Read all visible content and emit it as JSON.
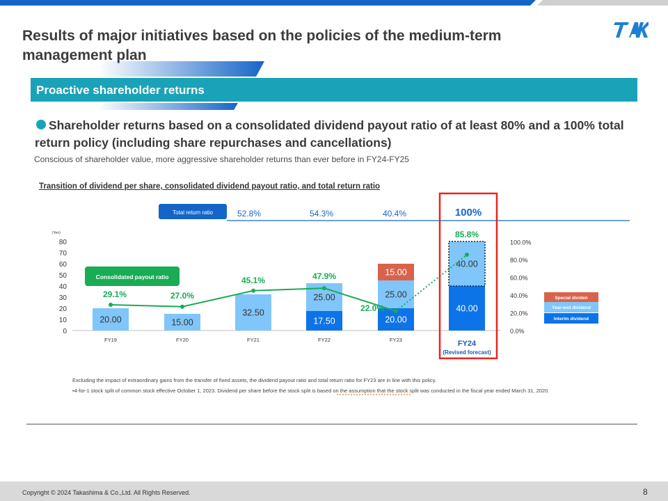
{
  "header": {
    "title": "Results of major initiatives based on the policies of the medium-term management plan",
    "section": "Proactive shareholder returns",
    "logo_icon": "tak-logo-icon"
  },
  "body": {
    "headline": "Shareholder returns based on a consolidated dividend payout ratio of at least 80% and a 100% total return policy (including share repurchases and cancellations)",
    "subline": "Conscious of shareholder value, more aggressive shareholder returns than ever before in FY24-FY25",
    "chart_title": "Transition of dividend per share, consolidated dividend payout ratio, and total return ratio"
  },
  "chart_data": {
    "type": "bar",
    "categories": [
      "FY19",
      "FY20",
      "FY21",
      "FY22",
      "FY23",
      "FY24"
    ],
    "category_note": "(Revised forecast)",
    "y_unit": "(Yen)",
    "ylim": [
      0,
      80
    ],
    "y_ticks": [
      "0",
      "10",
      "20",
      "30",
      "40",
      "50",
      "60",
      "70",
      "80"
    ],
    "y2_ticks": [
      "0.0%",
      "20.0%",
      "40.0%",
      "60.0%",
      "80.0%",
      "100.0%"
    ],
    "series": [
      {
        "name": "Interim dividend",
        "color": "#0d73e8",
        "values": [
          null,
          null,
          null,
          17.5,
          20.0,
          40.0
        ],
        "labels": [
          "",
          "",
          "",
          "17.50",
          "20.00",
          "40.00"
        ]
      },
      {
        "name": "Year-end dividend",
        "color": "#80c6fa",
        "values": [
          20.0,
          15.0,
          32.5,
          25.0,
          25.0,
          40.0
        ],
        "labels": [
          "20.00",
          "15.00",
          "32.50",
          "25.00",
          "25.00",
          "40.00"
        ]
      },
      {
        "name": "Special dividend",
        "color": "#d9634a",
        "values": [
          null,
          null,
          null,
          null,
          15.0,
          null
        ],
        "labels": [
          "",
          "",
          "",
          "",
          "15.00",
          ""
        ]
      }
    ],
    "payout_ratio": {
      "name": "Consolidated payout ratio",
      "color": "#1aab55",
      "values": [
        29.1,
        27.0,
        45.1,
        47.9,
        22.0,
        85.8
      ],
      "labels": [
        "29.1%",
        "27.0%",
        "45.1%",
        "47.9%",
        "22.0%",
        "85.8%"
      ]
    },
    "total_return": {
      "name": "Total return ratio",
      "labels": [
        "",
        "",
        "52.8%",
        "54.3%",
        "40.4%",
        "100%"
      ]
    },
    "legend_labels": [
      "Special dividen",
      "Year-end dividend",
      "Interim dividend"
    ]
  },
  "notes": [
    "Excluding the impact of extraordinary gains from the transfer of fixed assets, the dividend payout ratio and total return ratio for FY23 are in line with this policy.",
    "•4-for-1 stock split of common stock effective October 1, 2023. Dividend per share before the stock split is based on the assumption that the stock split was conducted in the fiscal year ended March 31, 2020."
  ],
  "footer": {
    "copyright": "Copyright © 2024 Takashima & Co.,Ltd. All Rights Reserved.",
    "page": "8"
  }
}
